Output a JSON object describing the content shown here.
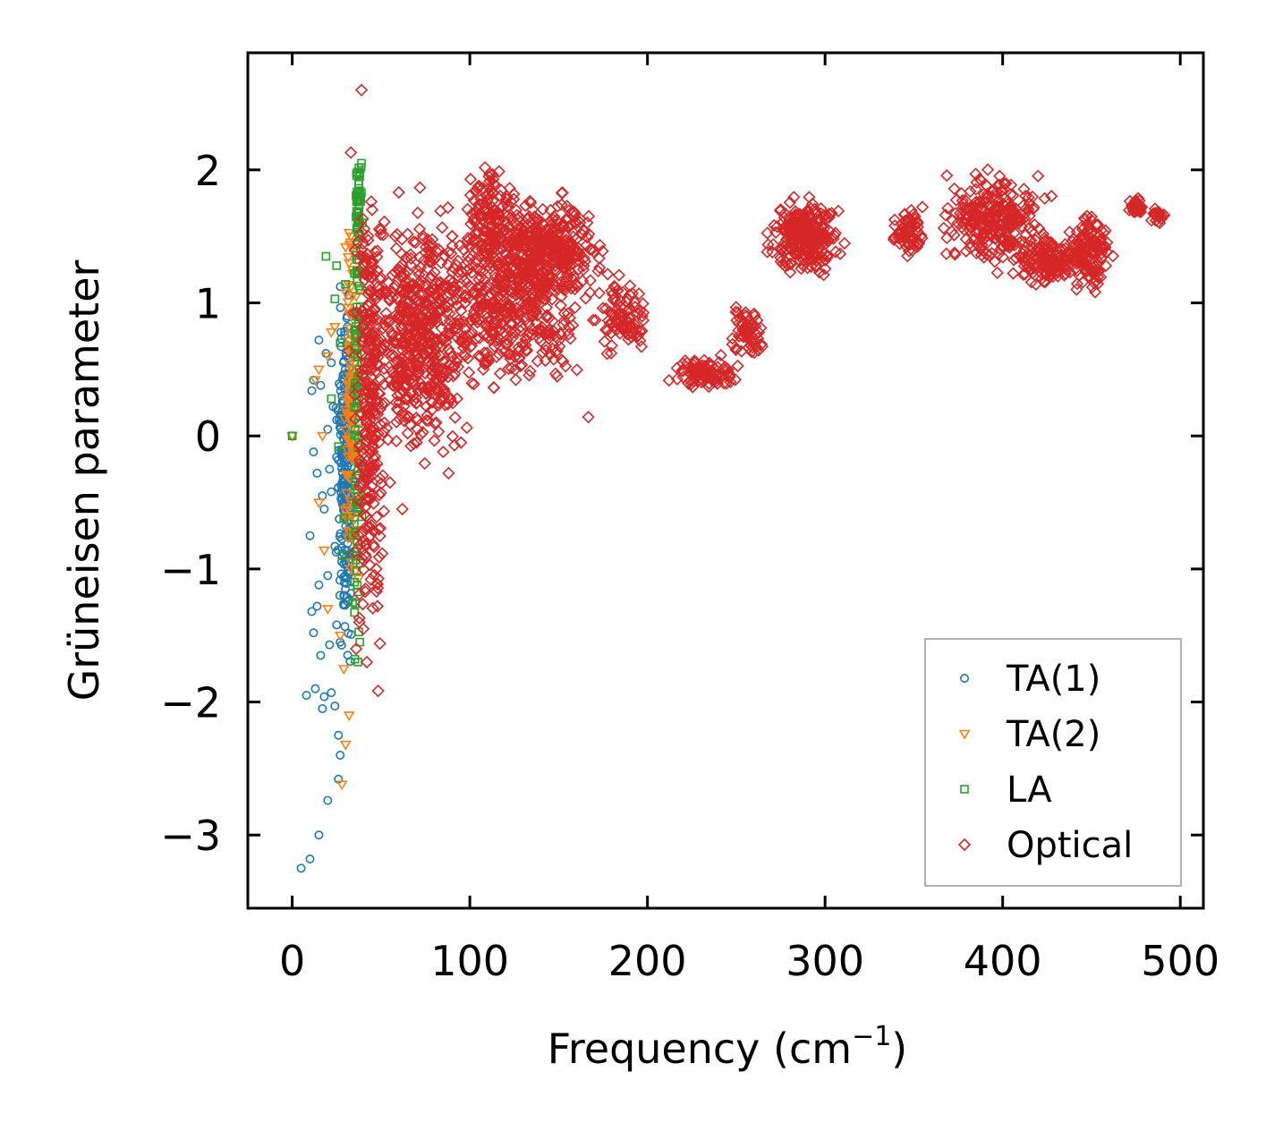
{
  "chart_data": {
    "type": "scatter",
    "title": "",
    "xlabel": "Frequency (cm",
    "xlabel_sup": "−1",
    "xlabel_end": ")",
    "ylabel": "Grüneisen parameter",
    "xlim": [
      -25,
      513
    ],
    "ylim": [
      -3.55,
      2.88
    ],
    "xticks": [
      0,
      100,
      200,
      300,
      400,
      500
    ],
    "yticks": [
      -3,
      -2,
      -1,
      0,
      1,
      2
    ],
    "ytick_labels": [
      "−3",
      "−2",
      "−1",
      "0",
      "1",
      "2"
    ],
    "grid": false,
    "legend_position": "bottom-right",
    "series": [
      {
        "name": "TA(1)",
        "marker": "circle",
        "color": "#1f77b4",
        "points": [
          [
            0,
            0
          ],
          [
            5,
            -3.25
          ],
          [
            10,
            -3.18
          ],
          [
            15,
            -3.0
          ],
          [
            20,
            -2.74
          ],
          [
            26,
            -2.58
          ],
          [
            27,
            -2.4
          ],
          [
            26,
            -2.25
          ],
          [
            24,
            -2.03
          ],
          [
            22,
            -1.93
          ],
          [
            18,
            -1.96
          ],
          [
            13,
            -1.9
          ],
          [
            8,
            -1.95
          ],
          [
            17,
            -2.05
          ],
          [
            16,
            -1.65
          ],
          [
            21,
            -1.57
          ],
          [
            12,
            -1.48
          ],
          [
            25,
            -1.42
          ],
          [
            14,
            -1.28
          ],
          [
            11,
            -1.32
          ],
          [
            20,
            -1.05
          ],
          [
            15,
            -1.12
          ],
          [
            10,
            -0.75
          ],
          [
            24,
            -0.83
          ],
          [
            18,
            -0.55
          ],
          [
            22,
            -0.42
          ],
          [
            14,
            -0.28
          ],
          [
            26,
            -0.18
          ],
          [
            12,
            -0.12
          ],
          [
            20,
            0.05
          ],
          [
            23,
            0.22
          ],
          [
            16,
            0.38
          ],
          [
            12,
            0.42
          ],
          [
            19,
            0.62
          ],
          [
            22,
            0.55
          ],
          [
            15,
            0.72
          ],
          [
            11,
            0.34
          ],
          [
            25,
            0.12
          ],
          [
            21,
            -0.25
          ],
          [
            17,
            -0.45
          ],
          [
            28,
            -0.9
          ],
          [
            29,
            -1.2
          ],
          [
            27,
            -1.55
          ],
          [
            30,
            -0.1
          ],
          [
            28,
            0.3
          ]
        ],
        "clusters": [
          {
            "cx": 30,
            "cy": -0.3,
            "sx": 2.0,
            "sy": 0.55,
            "n": 220
          }
        ]
      },
      {
        "name": "TA(2)",
        "marker": "triangle",
        "color": "#ff7f0e",
        "points": [
          [
            0,
            0
          ],
          [
            28,
            -2.62
          ],
          [
            30,
            -2.32
          ],
          [
            32,
            -2.1
          ],
          [
            29,
            -1.75
          ],
          [
            27,
            -1.5
          ],
          [
            20,
            -1.3
          ],
          [
            18,
            -0.86
          ],
          [
            15,
            -0.5
          ],
          [
            17,
            0.0
          ],
          [
            13,
            0.42
          ],
          [
            15,
            0.5
          ],
          [
            22,
            0.78
          ],
          [
            24,
            0.82
          ],
          [
            20,
            0.6
          ],
          [
            33,
            1.5
          ],
          [
            32,
            1.3
          ],
          [
            30,
            1.42
          ],
          [
            34,
            1.22
          ],
          [
            36,
            1.05
          ],
          [
            31,
            -0.6
          ],
          [
            33,
            -1.0
          ],
          [
            35,
            0.2
          ]
        ],
        "clusters": [
          {
            "cx": 33,
            "cy": 0.15,
            "sx": 2.0,
            "sy": 0.6,
            "n": 110
          }
        ]
      },
      {
        "name": "LA",
        "marker": "square",
        "color": "#2ca02c",
        "points": [
          [
            0,
            0
          ],
          [
            19,
            1.35
          ],
          [
            25,
            1.28
          ],
          [
            24,
            1.03
          ],
          [
            30,
            1.14
          ],
          [
            27,
            0.7
          ],
          [
            22,
            0.28
          ],
          [
            26,
            -0.08
          ],
          [
            29,
            -0.62
          ],
          [
            28,
            -0.9
          ],
          [
            34,
            -1.25
          ],
          [
            37,
            -1.7
          ],
          [
            38,
            -1.55
          ],
          [
            39,
            2.05
          ],
          [
            38,
            1.95
          ],
          [
            37,
            1.82
          ]
        ],
        "clusters": [
          {
            "cx": 37.5,
            "cy": 1.7,
            "sx": 0.8,
            "sy": 0.2,
            "n": 40
          },
          {
            "cx": 36.5,
            "cy": 0.2,
            "sx": 1.2,
            "sy": 0.8,
            "n": 90
          }
        ]
      },
      {
        "name": "Optical",
        "marker": "diamond",
        "color": "#d62728",
        "points": [
          [
            39,
            2.6
          ],
          [
            33,
            2.13
          ],
          [
            45,
            1.7
          ],
          [
            50,
            1.55
          ],
          [
            58,
            1.5
          ],
          [
            75,
            1.38
          ],
          [
            90,
            1.5
          ],
          [
            62,
            -0.55
          ],
          [
            55,
            -0.35
          ],
          [
            48,
            -1.28
          ],
          [
            42,
            -1.7
          ],
          [
            40,
            -1.45
          ],
          [
            36,
            -1.6
          ],
          [
            88,
            -0.28
          ],
          [
            85,
            -0.12
          ],
          [
            70,
            -0.05
          ],
          [
            65,
            0.02
          ],
          [
            95,
            -0.05
          ]
        ],
        "clusters": [
          {
            "cx": 44,
            "cy": 0.2,
            "sx": 3.5,
            "sy": 0.8,
            "n": 260
          },
          {
            "cx": 70,
            "cy": 0.75,
            "sx": 14,
            "sy": 0.38,
            "n": 520
          },
          {
            "cx": 120,
            "cy": 1.05,
            "sx": 20,
            "sy": 0.3,
            "n": 520
          },
          {
            "cx": 145,
            "cy": 1.42,
            "sx": 12,
            "sy": 0.18,
            "n": 320
          },
          {
            "cx": 112,
            "cy": 1.65,
            "sx": 6,
            "sy": 0.2,
            "n": 120
          },
          {
            "cx": 186,
            "cy": 0.88,
            "sx": 7,
            "sy": 0.12,
            "n": 90
          },
          {
            "cx": 232,
            "cy": 0.48,
            "sx": 8,
            "sy": 0.05,
            "n": 90
          },
          {
            "cx": 256,
            "cy": 0.78,
            "sx": 4,
            "sy": 0.08,
            "n": 60
          },
          {
            "cx": 289,
            "cy": 1.5,
            "sx": 8,
            "sy": 0.12,
            "n": 260
          },
          {
            "cx": 347,
            "cy": 1.55,
            "sx": 5,
            "sy": 0.08,
            "n": 70
          },
          {
            "cx": 395,
            "cy": 1.62,
            "sx": 12,
            "sy": 0.15,
            "n": 260
          },
          {
            "cx": 428,
            "cy": 1.33,
            "sx": 10,
            "sy": 0.08,
            "n": 170
          },
          {
            "cx": 450,
            "cy": 1.38,
            "sx": 5,
            "sy": 0.13,
            "n": 110
          },
          {
            "cx": 476,
            "cy": 1.72,
            "sx": 2,
            "sy": 0.05,
            "n": 25
          },
          {
            "cx": 488,
            "cy": 1.65,
            "sx": 2.5,
            "sy": 0.03,
            "n": 20
          }
        ]
      }
    ]
  }
}
